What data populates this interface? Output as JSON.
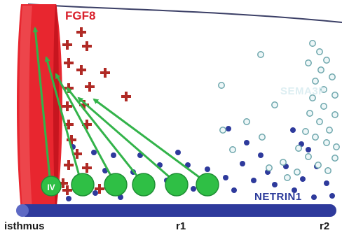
{
  "labels": {
    "fgf8": "FGF8",
    "sema3f": "SEMA3F",
    "netrin1": "NETRIN1",
    "isthmus": "isthmus",
    "r1": "r1",
    "r2": "r2",
    "neuron_iv": "IV"
  },
  "colors": {
    "fgf8_red": "#e8262f",
    "plus_red": "#b02a25",
    "netrin_blue": "#2e3a9c",
    "sema_teal": "#6fa7ad",
    "arrow_green": "#33b34a",
    "neuron_green": "#2fbf45"
  },
  "icons": [
    "plus-sign-icon",
    "netrin-dot-icon",
    "sema3f-ring-icon",
    "neuron-circle-icon",
    "trajectory-arrow-icon"
  ]
}
